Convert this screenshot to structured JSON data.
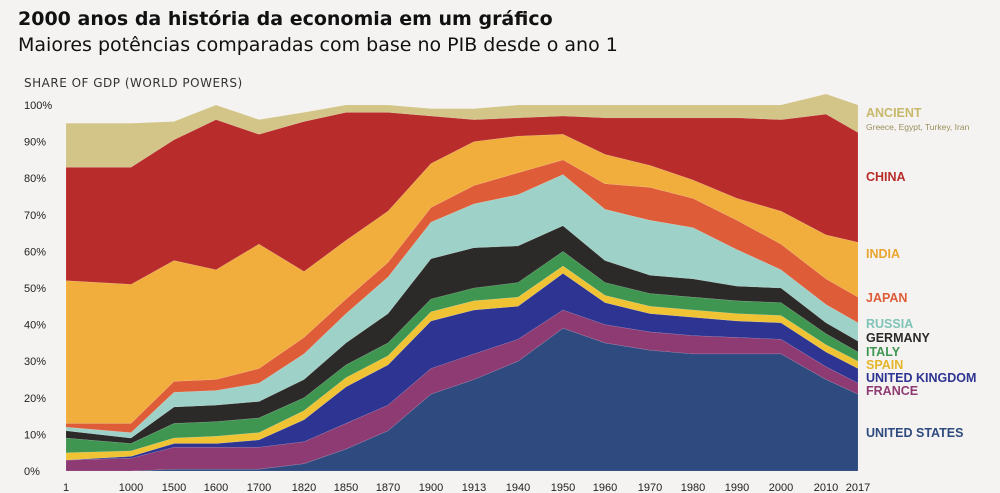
{
  "title": "2000 anos da história da economia em um gráfico",
  "subtitle": "Maiores potências comparadas com base no PIB desde o ano 1",
  "chart_data": {
    "type": "area",
    "stacked": true,
    "ylabel": "SHARE OF GDP (WORLD POWERS)",
    "ylim": [
      0,
      100
    ],
    "yticks": [
      "0%",
      "10%",
      "20%",
      "30%",
      "40%",
      "50%",
      "60%",
      "70%",
      "80%",
      "90%",
      "100%"
    ],
    "categories": [
      "1",
      "1000",
      "1500",
      "1600",
      "1700",
      "1820",
      "1850",
      "1870",
      "1900",
      "1913",
      "1940",
      "1950",
      "1960",
      "1970",
      "1980",
      "1990",
      "2000",
      "2010",
      "2017"
    ],
    "series": [
      {
        "name": "UNITED STATES",
        "color": "#2e4a7f",
        "values": [
          0,
          0,
          0.5,
          0.5,
          0.5,
          2,
          6,
          11,
          21,
          25,
          30,
          39,
          35,
          33,
          32,
          32,
          32,
          25,
          21
        ]
      },
      {
        "name": "FRANCE",
        "color": "#8e3b73",
        "values": [
          3,
          3.5,
          6,
          6,
          6,
          6,
          7,
          7,
          7,
          7,
          6,
          5,
          5,
          5,
          5,
          4.5,
          4,
          3.5,
          3
        ]
      },
      {
        "name": "UNITED KINGDOM",
        "color": "#2d3492",
        "values": [
          0,
          0.5,
          1,
          1,
          2,
          6,
          10,
          11,
          13,
          12,
          9,
          10,
          6,
          5,
          5,
          4.5,
          4.5,
          4,
          4
        ]
      },
      {
        "name": "SPAIN",
        "color": "#efc334",
        "values": [
          2,
          1.5,
          1.5,
          2,
          2,
          2.5,
          2.5,
          2.5,
          2.5,
          2.5,
          2.5,
          2,
          2,
          2,
          2,
          2,
          2,
          2,
          2
        ]
      },
      {
        "name": "ITALY",
        "color": "#3f9651",
        "values": [
          4,
          2,
          4,
          4,
          4,
          3.5,
          3.5,
          3.5,
          3.5,
          3.5,
          4,
          4,
          3.5,
          3.5,
          3.5,
          3.5,
          3.5,
          3,
          2.5
        ]
      },
      {
        "name": "GERMANY",
        "color": "#2b2a28",
        "values": [
          2,
          1.5,
          4.5,
          4.5,
          4.5,
          5,
          6,
          8,
          11,
          11,
          10,
          7,
          6,
          5,
          5,
          4,
          4,
          3,
          3
        ]
      },
      {
        "name": "RUSSIA",
        "color": "#9ed1c7",
        "values": [
          1,
          1.5,
          4,
          4,
          5,
          7,
          8,
          10,
          10,
          12,
          14,
          14,
          14,
          15,
          14,
          10,
          5,
          5,
          5
        ]
      },
      {
        "name": "JAPAN",
        "color": "#df5c38",
        "values": [
          1,
          2.5,
          3,
          3,
          4,
          4.5,
          4,
          4,
          4,
          5,
          6,
          4,
          7,
          9,
          8,
          8,
          7,
          7,
          7
        ]
      },
      {
        "name": "INDIA",
        "color": "#f1ae3c",
        "values": [
          39,
          38,
          33,
          30,
          34,
          18,
          16,
          14,
          12,
          12,
          10,
          7,
          8,
          6,
          5,
          6,
          9,
          12,
          15
        ]
      },
      {
        "name": "CHINA",
        "color": "#b82d2b",
        "values": [
          31,
          32,
          33,
          41,
          30,
          41,
          35,
          27,
          13,
          6,
          5,
          5,
          10,
          13,
          17,
          22,
          25,
          33,
          30
        ]
      },
      {
        "name": "ANCIENT",
        "color": "#d3c588",
        "values": [
          12,
          12,
          5,
          4,
          4,
          2.5,
          2,
          2,
          2,
          3,
          3.5,
          3,
          3.5,
          3.5,
          3.5,
          3.5,
          4,
          5.5,
          7.5
        ]
      }
    ],
    "legend": [
      {
        "name": "ANCIENT",
        "note": "Greece, Egypt, Turkey, Iran"
      },
      {
        "name": "CHINA"
      },
      {
        "name": "INDIA"
      },
      {
        "name": "JAPAN"
      },
      {
        "name": "RUSSIA"
      },
      {
        "name": "GERMANY"
      },
      {
        "name": "ITALY"
      },
      {
        "name": "SPAIN"
      },
      {
        "name": "UNITED KINGDOM"
      },
      {
        "name": "FRANCE"
      },
      {
        "name": "UNITED STATES"
      }
    ],
    "legend_placement": "right",
    "grid": false
  }
}
